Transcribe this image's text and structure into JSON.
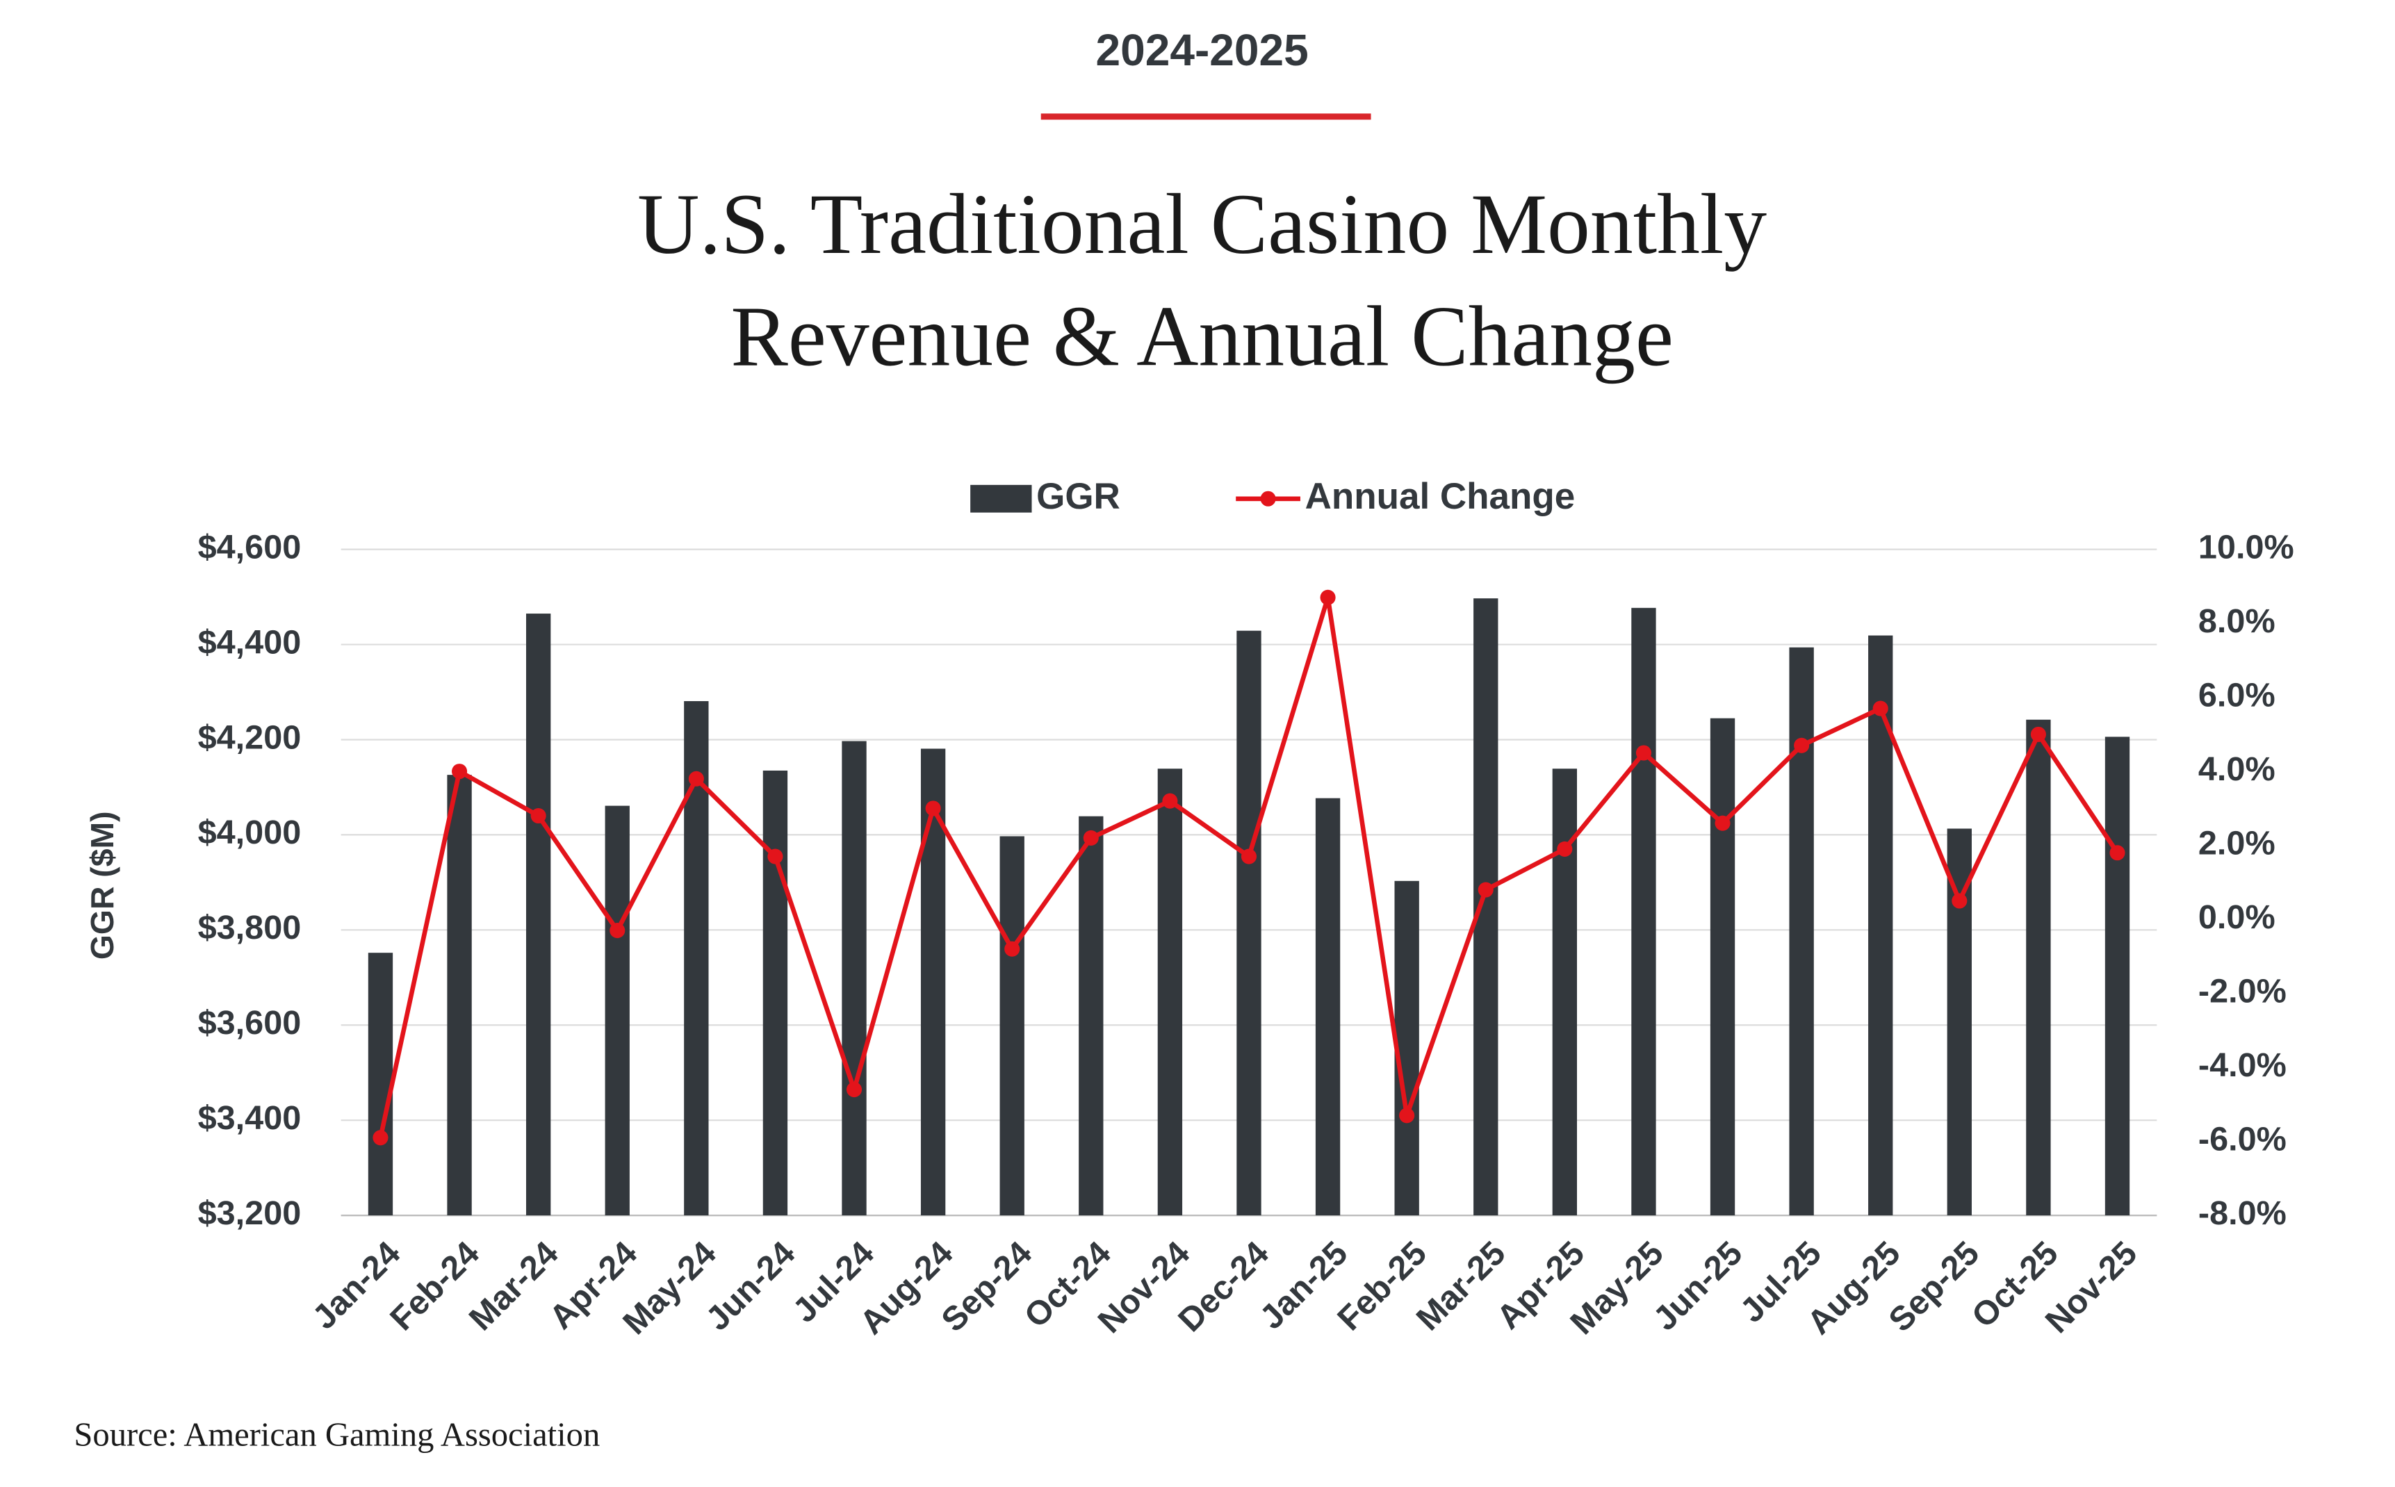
{
  "chart_data": {
    "type": "bar-line",
    "header": "2024-2025",
    "title": [
      "U.S. Traditional Casino Monthly",
      "Revenue & Annual Change"
    ],
    "ylabel": "GGR ($M)",
    "source": "Source: American Gaming Association",
    "categories": [
      "Jan-24",
      "Feb-24",
      "Mar-24",
      "Apr-24",
      "May-24",
      "Jun-24",
      "Jul-24",
      "Aug-24",
      "Sep-24",
      "Oct-24",
      "Nov-24",
      "Dec-24",
      "Jan-25",
      "Feb-25",
      "Mar-25",
      "Apr-25",
      "May-25",
      "Jun-25",
      "Jul-25",
      "Aug-25",
      "Sep-25",
      "Oct-25",
      "Nov-25"
    ],
    "series": [
      {
        "name": "GGR",
        "type": "bar",
        "color": "#33383d",
        "values": [
          3752,
          4126,
          4465,
          4061,
          4281,
          4135,
          4197,
          4181,
          3997,
          4039,
          4139,
          4429,
          4077,
          3903,
          4497,
          4139,
          4477,
          4245,
          4394,
          4419,
          4013,
          4242,
          4206
        ]
      },
      {
        "name": "Annual Change",
        "type": "line",
        "axis": "y2",
        "color": "#e3141b",
        "values": [
          -5.9,
          4.0,
          2.8,
          -0.3,
          3.8,
          1.7,
          -4.6,
          3.0,
          -0.8,
          2.2,
          3.2,
          1.7,
          8.7,
          -5.3,
          0.8,
          1.9,
          4.5,
          2.6,
          4.7,
          5.7,
          0.5,
          5.0,
          1.8
        ]
      }
    ],
    "ylim": [
      3200,
      4600
    ],
    "yticks": [
      {
        "value": 3200,
        "label": "$3,200"
      },
      {
        "value": 3400,
        "label": "$3,400"
      },
      {
        "value": 3600,
        "label": "$3,600"
      },
      {
        "value": 3800,
        "label": "$3,800"
      },
      {
        "value": 4000,
        "label": "$4,000"
      },
      {
        "value": 4200,
        "label": "$4,200"
      },
      {
        "value": 4400,
        "label": "$4,400"
      },
      {
        "value": 4600,
        "label": "$4,600"
      }
    ],
    "y2lim": [
      -8,
      10
    ],
    "y2ticks": [
      {
        "value": -8,
        "label": "-8.0%"
      },
      {
        "value": -6,
        "label": "-6.0%"
      },
      {
        "value": -4,
        "label": "-4.0%"
      },
      {
        "value": -2,
        "label": "-2.0%"
      },
      {
        "value": 0,
        "label": "0.0%"
      },
      {
        "value": 2,
        "label": "2.0%"
      },
      {
        "value": 4,
        "label": "4.0%"
      },
      {
        "value": 6,
        "label": "6.0%"
      },
      {
        "value": 8,
        "label": "8.0%"
      },
      {
        "value": 10,
        "label": "10.0%"
      }
    ],
    "grid": true,
    "legend": "top",
    "accent_color": "#d9262b"
  }
}
